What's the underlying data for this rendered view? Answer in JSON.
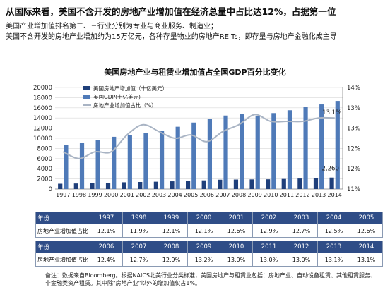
{
  "headline": "从国际来看，美国不含开发的房地产业增加值在经济总量中占比达12%，占据第一位",
  "subline1": "美国产业增加值排名第二、三行业分别为专业与商业服务、制造业；",
  "subline2": "美国不含开发的房地产业增加约为15万亿元，各种存量物业的房地产REITs，即存量与房地产金融化成主导",
  "table": {
    "year_label": "年份",
    "share_label": "房地产业增加值占比",
    "rows1_years": [
      "1997",
      "1998",
      "1999",
      "2000",
      "2001",
      "2002",
      "2003",
      "2004",
      "2005"
    ],
    "rows1_values": [
      "12.1%",
      "11.9%",
      "12.1%",
      "12.1%",
      "12.6%",
      "12.9%",
      "12.7%",
      "12.5%",
      "12.6%"
    ],
    "rows2_years": [
      "2006",
      "2007",
      "2008",
      "2009",
      "2010",
      "2011",
      "2012",
      "2013",
      "2014"
    ],
    "rows2_values": [
      "12.4%",
      "12.7%",
      "12.9%",
      "13.2%",
      "13.0%",
      "13.0%",
      "13.0%",
      "13.1%",
      "13.1%"
    ]
  },
  "note": "备注：数据来自Bloomberg。根据NAICS北美行业分类标准，美国房地产与租赁业包括：房地产业、自动设备租赁、其他租赁服务、非金融类资产租赁。其中除\"房地产业\"以外的增加值仅占1%。",
  "chart_data": {
    "type": "bar",
    "title": "美国房地产业与租赁业增加值占全国GDP百分比变化",
    "categories": [
      "1997",
      "1998",
      "1999",
      "2000",
      "2001",
      "2002",
      "2003",
      "2004",
      "2005",
      "2006",
      "2007",
      "2008",
      "2009",
      "2010",
      "2011",
      "2012",
      "2013",
      "2014"
    ],
    "series": [
      {
        "name": "美国房地产增加值（十亿美元）",
        "kind": "bar",
        "axis": "left",
        "values": [
          1040,
          1090,
          1170,
          1250,
          1330,
          1390,
          1440,
          1520,
          1640,
          1710,
          1840,
          1870,
          1900,
          1920,
          1990,
          2070,
          2180,
          2260
        ]
      },
      {
        "name": "美国GDP(十亿美元)",
        "kind": "bar",
        "axis": "left",
        "values": [
          8610,
          9090,
          9660,
          10290,
          10620,
          10980,
          11510,
          12270,
          13090,
          13860,
          14480,
          14720,
          14420,
          14960,
          15520,
          16160,
          16660,
          17350
        ]
      },
      {
        "name": "房地产业增加值占比（%）",
        "kind": "line",
        "axis": "right",
        "values": [
          12.1,
          11.9,
          12.1,
          12.1,
          12.6,
          12.9,
          12.7,
          12.5,
          12.6,
          12.4,
          12.7,
          12.9,
          13.2,
          13.0,
          13.0,
          13.0,
          13.1,
          13.1
        ]
      }
    ],
    "annotations": [
      "13.1%",
      "2,260"
    ],
    "ylim": [
      0,
      20000
    ],
    "yticks": [
      0,
      2000,
      4000,
      6000,
      8000,
      10000,
      12000,
      14000,
      16000,
      18000,
      20000
    ],
    "y2lim": [
      11,
      14
    ],
    "y2ticks": [
      "11%",
      "12%",
      "12%",
      "13%",
      "13%",
      "14%"
    ],
    "legend_position": "top-left",
    "colors": {
      "real_estate": "#1f3f7a",
      "gdp": "#4f7ab8",
      "share_line": "#a9b4c4",
      "header_bg": "#2f4d87"
    }
  }
}
